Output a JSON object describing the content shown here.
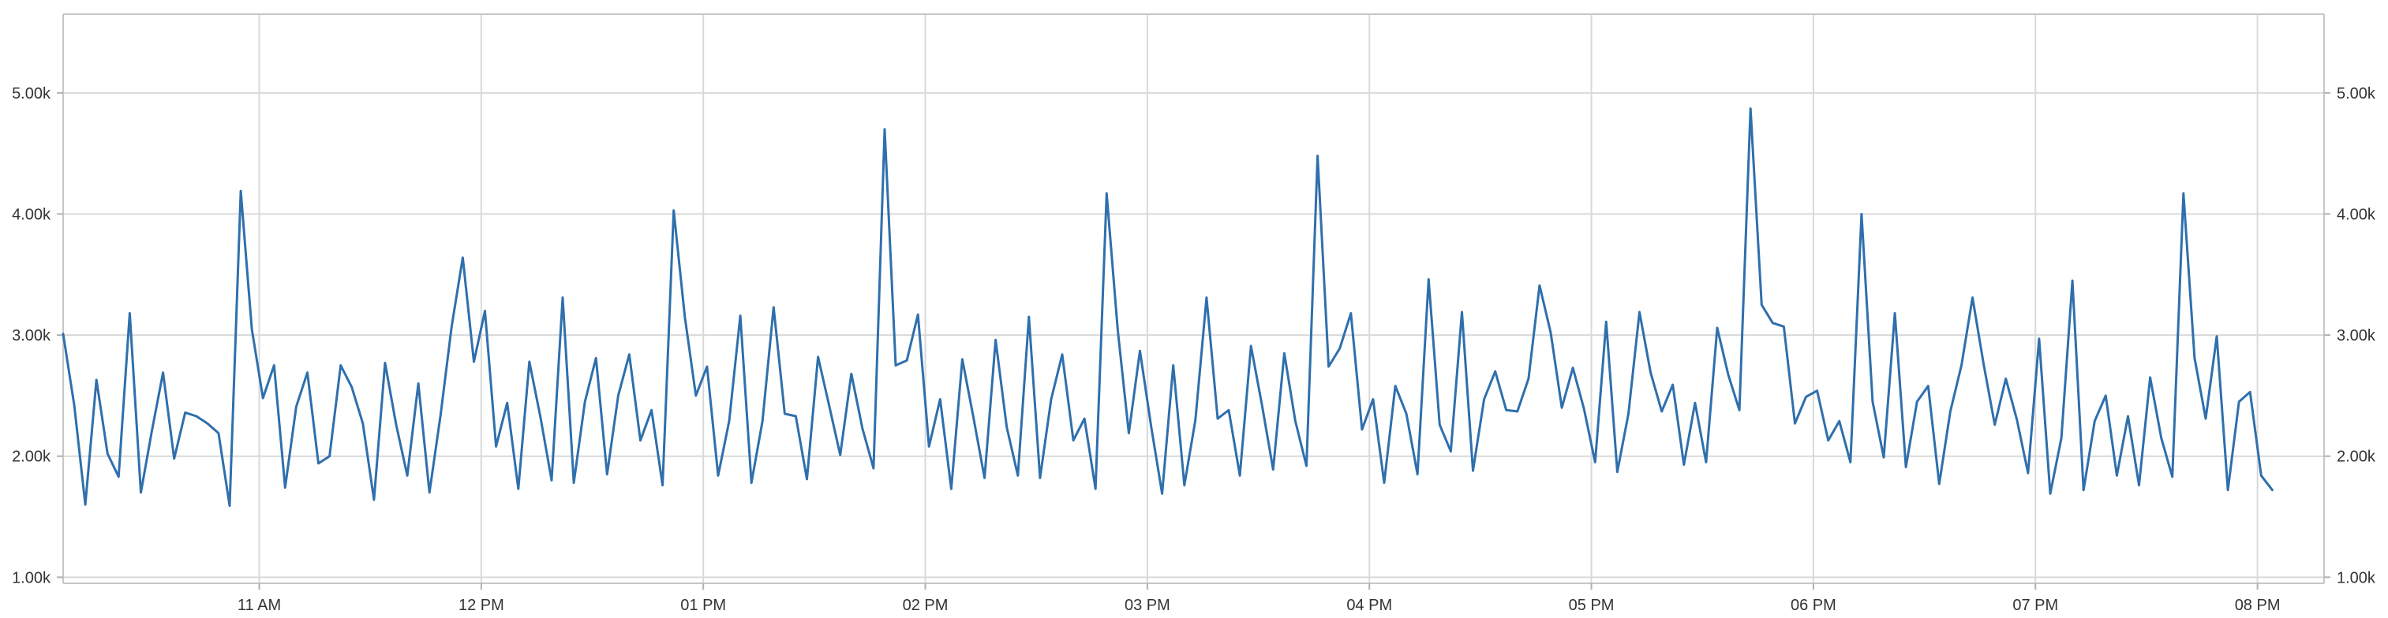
{
  "chart_data": {
    "type": "line",
    "title": "",
    "xlabel": "",
    "ylabel": "",
    "ylim": [
      950,
      5650
    ],
    "y_ticks": [
      "1.00k",
      "2.00k",
      "3.00k",
      "4.00k",
      "5.00k"
    ],
    "y_tick_values": [
      1000,
      2000,
      3000,
      4000,
      5000
    ],
    "x_ticks": [
      "11 AM",
      "12 PM",
      "01 PM",
      "02 PM",
      "03 PM",
      "04 PM",
      "05 PM",
      "06 PM",
      "07 PM",
      "08 PM"
    ],
    "x_start_minutes": 607,
    "x_interval_minutes": 3,
    "x_tick_minutes": [
      660,
      720,
      780,
      840,
      900,
      960,
      1020,
      1080,
      1140,
      1200
    ],
    "x_end_minutes": 1218,
    "grid": true,
    "legend": "none",
    "y_axis_both_sides": true,
    "series_color": "#2f6fad",
    "series": [
      {
        "values": [
          3010,
          2420,
          1600,
          2630,
          2020,
          1830,
          3180,
          1700,
          2210,
          2690,
          1980,
          2360,
          2330,
          2270,
          2190,
          1590,
          4190,
          3050,
          2480,
          2750,
          1740,
          2410,
          2690,
          1940,
          2000,
          2750,
          2570,
          2270,
          1640,
          2770,
          2260,
          1840,
          2600,
          1700,
          2340,
          3070,
          3640,
          2780,
          3200,
          2080,
          2440,
          1730,
          2780,
          2320,
          1800,
          3310,
          1780,
          2450,
          2810,
          1850,
          2500,
          2840,
          2130,
          2380,
          1760,
          4030,
          3150,
          2500,
          2740,
          1840,
          2290,
          3160,
          1780,
          2290,
          3230,
          2350,
          2330,
          1810,
          2820,
          2420,
          2010,
          2680,
          2230,
          1900,
          4700,
          2750,
          2790,
          3170,
          2080,
          2470,
          1730,
          2800,
          2320,
          1820,
          2960,
          2240,
          1840,
          3150,
          1820,
          2470,
          2840,
          2130,
          2310,
          1730,
          4170,
          3040,
          2190,
          2870,
          2250,
          1690,
          2750,
          1760,
          2300,
          3310,
          2310,
          2380,
          1840,
          2910,
          2420,
          1890,
          2850,
          2290,
          1920,
          4480,
          2740,
          2890,
          3180,
          2220,
          2470,
          1780,
          2580,
          2350,
          1850,
          3460,
          2260,
          2040,
          3190,
          1880,
          2470,
          2700,
          2380,
          2370,
          2640,
          3410,
          3020,
          2400,
          2730,
          2390,
          1950,
          3110,
          1870,
          2350,
          3190,
          2690,
          2370,
          2590,
          1930,
          2440,
          1950,
          3060,
          2670,
          2380,
          4870,
          3250,
          3100,
          3070,
          2270,
          2490,
          2540,
          2130,
          2290,
          1950,
          4000,
          2450,
          1990,
          3180,
          1910,
          2450,
          2580,
          1770,
          2370,
          2750,
          3310,
          2760,
          2260,
          2640,
          2300,
          1860,
          2970,
          1690,
          2150,
          3450,
          1720,
          2290,
          2500,
          1840,
          2330,
          1760,
          2650,
          2150,
          1830,
          4170,
          2810,
          2310,
          2990,
          1720,
          2450,
          2530,
          1840,
          1720
        ]
      }
    ]
  }
}
